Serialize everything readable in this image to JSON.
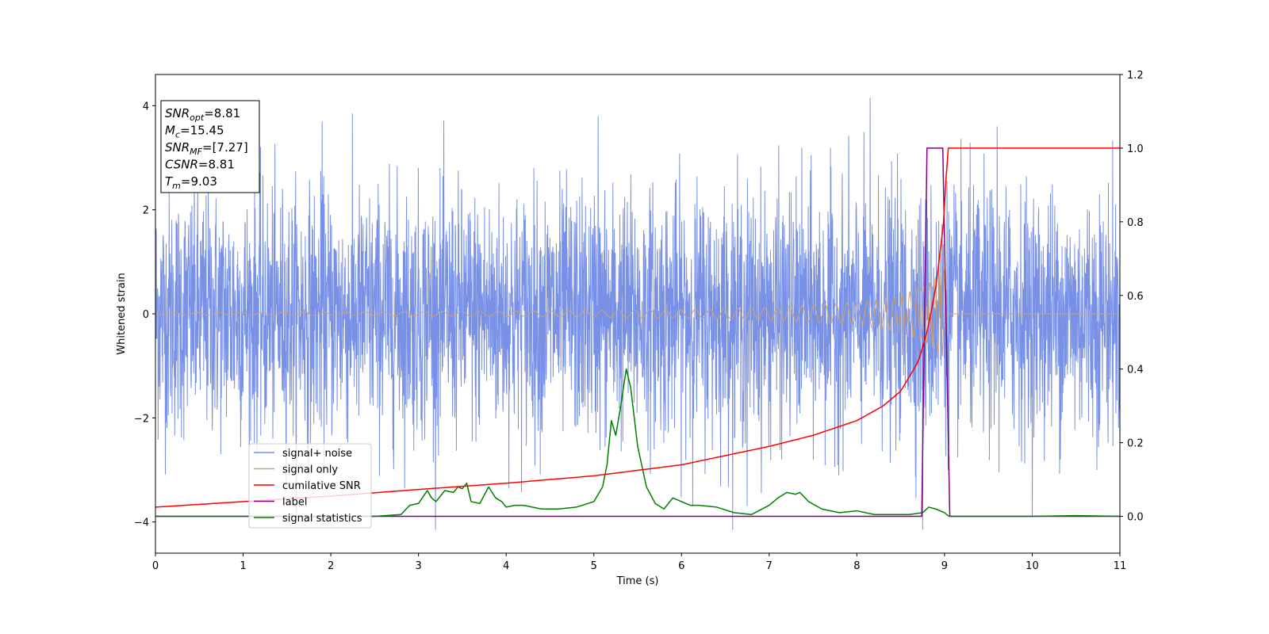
{
  "chart_data": {
    "type": "line",
    "title": "",
    "xlabel": "Time (s)",
    "ylabel": "Whitened strain",
    "xlim": [
      0,
      11
    ],
    "ylim": [
      -4.6,
      4.6
    ],
    "y2lim": [
      -0.1,
      1.2
    ],
    "x_ticks": [
      0,
      1,
      2,
      3,
      4,
      5,
      6,
      7,
      8,
      9,
      10,
      11
    ],
    "y_ticks": [
      -4,
      -2,
      0,
      2,
      4
    ],
    "y2_ticks": [
      0.0,
      0.2,
      0.4,
      0.6,
      0.8,
      1.0,
      1.2
    ],
    "y2_tick_labels": [
      "0.0",
      "0.2",
      "0.4",
      "0.6",
      "0.8",
      "1.0",
      "1.2"
    ],
    "grid": false,
    "legend_position": "lower-left",
    "annotation": {
      "lines": [
        {
          "label": "SNR",
          "sub": "opt",
          "value": "=8.81"
        },
        {
          "label": "M",
          "sub": "c",
          "value": "=15.45"
        },
        {
          "label": "SNR",
          "sub": "MF",
          "value": "=[7.27]"
        },
        {
          "label": "CSNR",
          "sub": "",
          "value": "=8.81"
        },
        {
          "label": "T",
          "sub": "m",
          "value": "=9.03"
        }
      ]
    },
    "series": [
      {
        "name": "signal+ noise",
        "axis": "left",
        "color": "#7891e6",
        "style": "noise",
        "amplitude_envelope": {
          "typical_range": [
            -2.0,
            2.0
          ],
          "max": 4.15,
          "min": -4.15
        },
        "peak_points": [
          {
            "x": 8.15,
            "y": 4.15
          },
          {
            "x": 5.05,
            "y": 3.8
          },
          {
            "x": 1.9,
            "y": 3.7
          },
          {
            "x": 8.75,
            "y": -4.15
          },
          {
            "x": 6.75,
            "y": -3.7
          },
          {
            "x": 9.6,
            "y": 3.6
          }
        ]
      },
      {
        "name": "signal only",
        "axis": "left",
        "color": "#d0a36b",
        "style": "chirp",
        "merger_time": 9.03,
        "amplitude_points": [
          [
            0,
            0.02
          ],
          [
            2,
            0.03
          ],
          [
            4,
            0.05
          ],
          [
            6,
            0.08
          ],
          [
            7,
            0.12
          ],
          [
            8,
            0.22
          ],
          [
            8.5,
            0.35
          ],
          [
            8.8,
            0.55
          ],
          [
            9.0,
            0.85
          ],
          [
            9.03,
            0.0
          ],
          [
            11,
            0.0
          ]
        ]
      },
      {
        "name": "cumilative SNR",
        "axis": "right",
        "color": "#ff0000",
        "x": [
          0,
          1,
          2,
          3,
          4,
          5,
          6,
          7,
          7.5,
          8,
          8.3,
          8.5,
          8.7,
          8.8,
          8.9,
          9.0,
          9.03,
          9.04,
          11
        ],
        "y": [
          0.025,
          0.04,
          0.055,
          0.073,
          0.09,
          0.11,
          0.14,
          0.19,
          0.22,
          0.26,
          0.3,
          0.34,
          0.42,
          0.5,
          0.62,
          0.82,
          1.0,
          1.0,
          1.0
        ]
      },
      {
        "name": "label",
        "axis": "right",
        "color": "#800080",
        "x": [
          0,
          8.74,
          8.8,
          8.98,
          9.06,
          11
        ],
        "y": [
          0.0,
          0.0,
          1.0,
          1.0,
          0.0,
          0.0
        ]
      },
      {
        "name": "signal statistics",
        "axis": "right",
        "color": "#008000",
        "x": [
          0,
          2.5,
          2.8,
          2.9,
          3.0,
          3.1,
          3.15,
          3.2,
          3.3,
          3.4,
          3.45,
          3.5,
          3.55,
          3.6,
          3.7,
          3.8,
          3.88,
          3.95,
          4.0,
          4.1,
          4.2,
          4.4,
          4.6,
          4.8,
          5.0,
          5.1,
          5.15,
          5.2,
          5.25,
          5.3,
          5.37,
          5.42,
          5.5,
          5.6,
          5.7,
          5.8,
          5.9,
          6.0,
          6.1,
          6.2,
          6.4,
          6.6,
          6.8,
          7.0,
          7.1,
          7.2,
          7.3,
          7.35,
          7.45,
          7.6,
          7.8,
          8.0,
          8.2,
          8.4,
          8.6,
          8.75,
          8.82,
          8.9,
          9.0,
          9.05,
          10.0,
          10.5,
          11
        ],
        "y": [
          0.0,
          0.0,
          0.005,
          0.03,
          0.035,
          0.07,
          0.05,
          0.04,
          0.07,
          0.065,
          0.08,
          0.075,
          0.09,
          0.04,
          0.035,
          0.08,
          0.05,
          0.04,
          0.025,
          0.03,
          0.03,
          0.02,
          0.02,
          0.025,
          0.04,
          0.08,
          0.14,
          0.26,
          0.22,
          0.29,
          0.4,
          0.35,
          0.19,
          0.08,
          0.035,
          0.02,
          0.05,
          0.04,
          0.03,
          0.03,
          0.025,
          0.01,
          0.005,
          0.03,
          0.05,
          0.065,
          0.06,
          0.065,
          0.04,
          0.02,
          0.01,
          0.015,
          0.005,
          0.005,
          0.005,
          0.01,
          0.025,
          0.02,
          0.01,
          0.0,
          0.0,
          0.002,
          0.0
        ]
      }
    ]
  }
}
